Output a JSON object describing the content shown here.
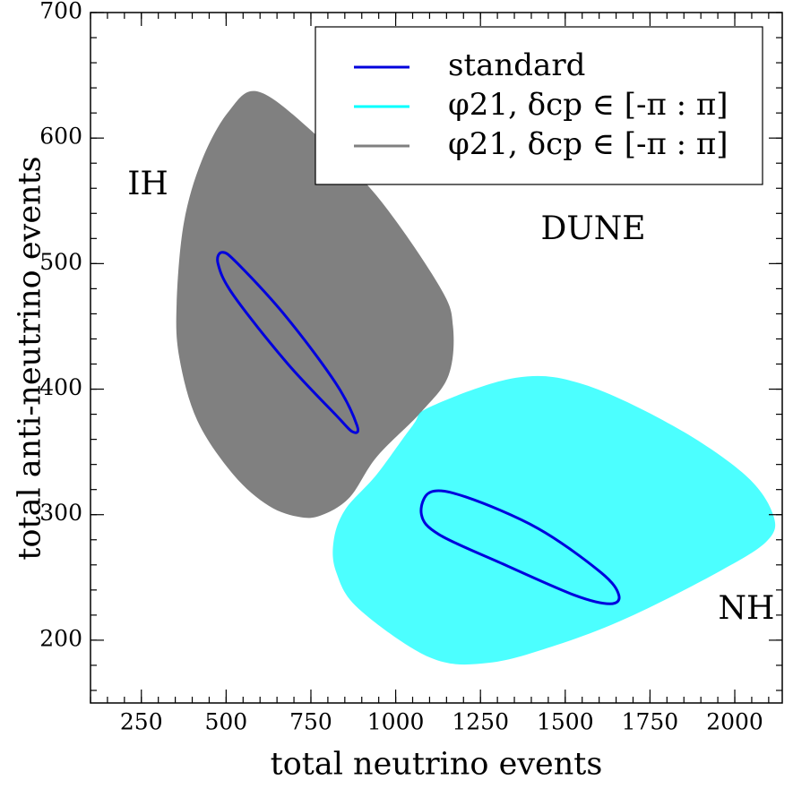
{
  "chart_data": {
    "type": "region",
    "xlabel": "total neutrino events",
    "ylabel": "total anti-neutrino events",
    "xlim": [
      100,
      2140
    ],
    "ylim": [
      150,
      700
    ],
    "xticks": [
      250,
      500,
      750,
      1000,
      1250,
      1500,
      1750,
      2000
    ],
    "yticks": [
      200,
      300,
      400,
      500,
      600,
      700
    ],
    "xminor_ticks": [
      100,
      150,
      200,
      250,
      300,
      350,
      400,
      450,
      500,
      550,
      600,
      650,
      700,
      750,
      800,
      850,
      900,
      950,
      1000,
      1050,
      1100,
      1150,
      1200,
      1250,
      1300,
      1350,
      1400,
      1450,
      1500,
      1550,
      1600,
      1650,
      1700,
      1750,
      1800,
      1850,
      1900,
      1950,
      2000,
      2050,
      2100
    ],
    "yminor_ticks": [
      160,
      180,
      200,
      220,
      240,
      260,
      280,
      300,
      320,
      340,
      360,
      380,
      400,
      420,
      440,
      460,
      480,
      500,
      520,
      540,
      560,
      580,
      600,
      620,
      640,
      660,
      680,
      700
    ],
    "legend_loc": "upper right",
    "annotations": [
      "IH",
      "DUNE",
      "NH"
    ],
    "series": [
      {
        "name": "φ21, δcp ∈ [-π : π]",
        "color": "#808080",
        "style": "area",
        "opacity": 1,
        "x": [
          595,
          759,
          944,
          1129,
          1169,
          1156,
          1076,
          944,
          865,
          785,
          719,
          626,
          521,
          415,
          362,
          354,
          375,
          428,
          507
        ],
        "y": [
          637,
          604,
          554,
          482,
          450,
          411,
          382,
          346,
          314,
          300,
          298,
          307,
          332,
          375,
          425,
          468,
          532,
          582,
          621
        ]
      },
      {
        "name": "φ21, δcp ∈ [-π : π]",
        "color": "#00ffff",
        "style": "area",
        "opacity": 0.7,
        "x": [
          1103,
          1354,
          1552,
          1817,
          2029,
          2113,
          2095,
          1949,
          1685,
          1473,
          1275,
          1103,
          891,
          825,
          817,
          851,
          944,
          1050
        ],
        "y": [
          386,
          409,
          404,
          371,
          332,
          300,
          279,
          254,
          218,
          196,
          182,
          186,
          225,
          254,
          279,
          304,
          332,
          371
        ]
      },
      {
        "name": "standard",
        "color": "#0000dd",
        "style": "line",
        "opacity": 1,
        "x": [
          489,
          534,
          679,
          825,
          886,
          873,
          825,
          679,
          521,
          476,
          null,
          1103,
          1208,
          1420,
          1605,
          1658,
          1632,
          1526,
          1314,
          1129,
          1076
        ],
        "y": [
          509,
          500,
          457,
          404,
          371,
          366,
          379,
          421,
          475,
          500,
          null,
          318,
          314,
          289,
          254,
          236,
          229,
          236,
          261,
          284,
          300
        ]
      }
    ],
    "legend_order": [
      2,
      1,
      0
    ]
  }
}
